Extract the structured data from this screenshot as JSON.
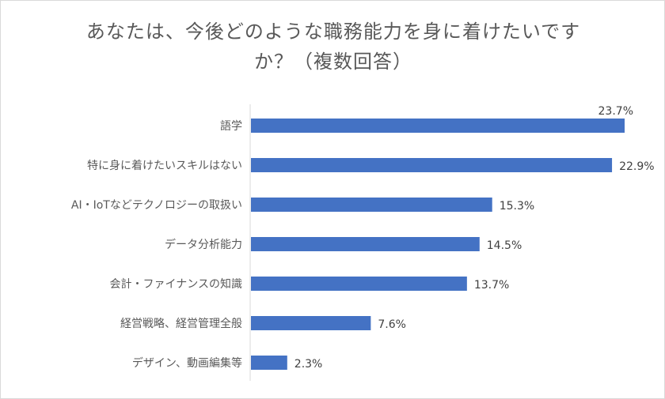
{
  "chart_data": {
    "type": "bar",
    "orientation": "horizontal",
    "title": [
      "あなたは、今後どのような職務能力を身に着けたいです",
      "か？（複数回答）"
    ],
    "categories": [
      "語学",
      "特に身に着けたいスキルはない",
      "AI・IoTなどテクノロジーの取扱い",
      "データ分析能力",
      "会計・ファイナンスの知識",
      "経営戦略、経営管理全般",
      "デザイン、動画編集等"
    ],
    "values": [
      23.7,
      22.9,
      15.3,
      14.5,
      13.7,
      7.6,
      2.3
    ],
    "value_labels": [
      "23.7%",
      "22.9%",
      "15.3%",
      "14.5%",
      "13.7%",
      "7.6%",
      "2.3%"
    ],
    "unit": "%",
    "xlim": [
      0,
      25
    ],
    "grid": false,
    "legend": "none",
    "bar_color": "#4472c4"
  }
}
